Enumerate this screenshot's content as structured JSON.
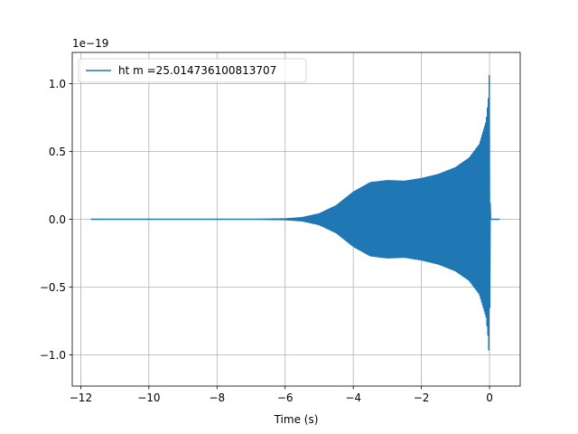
{
  "chart_data": {
    "type": "line",
    "title": "",
    "xlabel": "Time (s)",
    "ylabel": "",
    "y_multiplier_label": "1e−19",
    "xlim": [
      -12.25,
      0.9
    ],
    "ylim": [
      -1.23,
      1.23
    ],
    "x_ticks": [
      -12,
      -10,
      -8,
      -6,
      -4,
      -2,
      0
    ],
    "x_tick_labels": [
      "−12",
      "−10",
      "−8",
      "−6",
      "−4",
      "−2",
      "0"
    ],
    "y_ticks": [
      -1.0,
      -0.5,
      0.0,
      0.5,
      1.0
    ],
    "y_tick_labels": [
      "−1.0",
      "−0.5",
      "0.0",
      "0.5",
      "1.0"
    ],
    "grid": true,
    "legend_position": "top-left",
    "series": [
      {
        "name": "ht m =25.014736100813707",
        "color": "#1f77b4",
        "envelope_time": [
          -11.7,
          -7.0,
          -6.0,
          -5.5,
          -5.0,
          -4.5,
          -4.0,
          -3.5,
          -3.0,
          -2.5,
          -2.0,
          -1.5,
          -1.0,
          -0.6,
          -0.3,
          -0.1,
          -0.03,
          0.0,
          0.01,
          0.03,
          0.3
        ],
        "envelope_amplitude": [
          0.0,
          0.0,
          0.003,
          0.012,
          0.04,
          0.1,
          0.2,
          0.27,
          0.285,
          0.28,
          0.3,
          0.33,
          0.38,
          0.45,
          0.55,
          0.72,
          0.9,
          1.12,
          0.2,
          0.0,
          0.0
        ]
      }
    ]
  }
}
